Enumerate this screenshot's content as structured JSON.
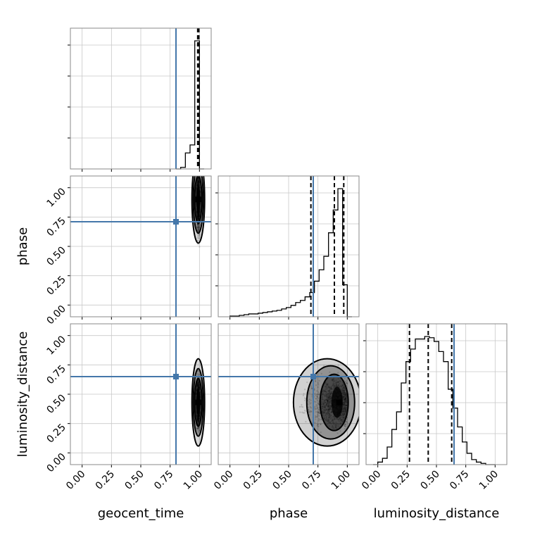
{
  "chart_data": {
    "type": "corner",
    "parameters": [
      "geocent_time",
      "phase",
      "luminosity_distance"
    ],
    "axis_labels": {
      "x": [
        "geocent_time",
        "phase",
        "luminosity_distance"
      ],
      "y": [
        "",
        "phase",
        "luminosity_distance"
      ]
    },
    "tick_labels": [
      "0.00",
      "0.25",
      "0.50",
      "0.75",
      "1.00"
    ],
    "axis_range": [
      -0.1,
      1.1
    ],
    "grid": true,
    "truths": [
      0.8,
      0.71,
      0.65
    ],
    "truth_color": "#4477aa",
    "quantiles": [
      [
        0.985,
        0.99,
        0.995
      ],
      [
        0.69,
        0.89,
        0.97
      ],
      [
        0.27,
        0.43,
        0.63
      ]
    ],
    "histograms": [
      {
        "param": "geocent_time",
        "bin_edges": [
          0.8,
          0.84,
          0.88,
          0.92,
          0.96,
          1.0,
          1.04
        ],
        "counts": [
          0,
          2,
          20,
          30,
          160,
          0
        ]
      },
      {
        "param": "phase",
        "bin_edges": [
          0.0,
          0.04,
          0.08,
          0.12,
          0.16,
          0.2,
          0.24,
          0.28,
          0.32,
          0.36,
          0.4,
          0.44,
          0.48,
          0.52,
          0.56,
          0.6,
          0.64,
          0.68,
          0.72,
          0.76,
          0.8,
          0.84,
          0.88,
          0.92,
          0.96,
          1.0,
          1.04
        ],
        "counts": [
          1,
          1,
          2,
          3,
          4,
          4,
          5,
          6,
          7,
          8,
          9,
          11,
          13,
          16,
          20,
          23,
          28,
          34,
          50,
          66,
          85,
          118,
          150,
          180,
          45,
          0
        ]
      },
      {
        "param": "luminosity_distance",
        "bin_edges": [
          -0.04,
          0.0,
          0.04,
          0.08,
          0.12,
          0.16,
          0.2,
          0.24,
          0.28,
          0.32,
          0.36,
          0.4,
          0.44,
          0.48,
          0.52,
          0.56,
          0.6,
          0.64,
          0.68,
          0.72,
          0.76,
          0.8,
          0.84,
          0.88,
          0.92,
          0.96,
          1.0
        ],
        "counts": [
          0,
          2,
          5,
          14,
          28,
          42,
          65,
          82,
          92,
          100,
          100,
          102,
          101,
          98,
          90,
          82,
          60,
          45,
          30,
          18,
          9,
          4,
          2,
          1,
          0,
          0
        ]
      }
    ],
    "densities": [
      {
        "x": "geocent_time",
        "y": "phase",
        "center": [
          0.99,
          0.9
        ],
        "spread": [
          0.01,
          0.18
        ]
      },
      {
        "x": "geocent_time",
        "y": "luminosity_distance",
        "center": [
          0.99,
          0.43
        ],
        "spread": [
          0.01,
          0.14
        ]
      },
      {
        "x": "phase",
        "y": "luminosity_distance",
        "center": [
          0.93,
          0.43
        ],
        "spread": [
          0.1,
          0.14
        ]
      }
    ]
  }
}
